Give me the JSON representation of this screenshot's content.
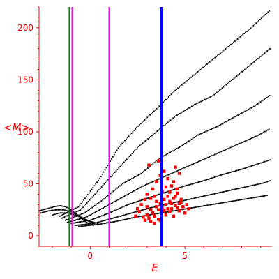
{
  "chart_data": {
    "type": "scatter",
    "title": "",
    "xlabel": "E",
    "ylabel": "<M>",
    "xlim": [
      -2.7,
      9.6
    ],
    "ylim": [
      -10,
      220
    ],
    "xticks": [
      0,
      5
    ],
    "yticks": [
      0,
      50,
      100,
      150,
      200
    ],
    "grid": false,
    "axis_color": "#ff0000",
    "vertical_lines": [
      {
        "x": -1.1,
        "color": "#008000"
      },
      {
        "x": -0.95,
        "color": "#ff00ff"
      },
      {
        "x": 1.0,
        "color": "#ff00ff"
      },
      {
        "x": 3.75,
        "color": "#0000ff"
      }
    ],
    "series": [
      {
        "color": "#000000",
        "marker": "dot",
        "bands": [
          {
            "x": [
              -1.6,
              -0.6,
              0.5,
              1.5,
              2.5,
              3.5,
              4.5,
              5.5,
              6.5,
              7.5,
              8.5,
              9.5
            ],
            "y": [
              19,
              28,
              55,
              85,
              105,
              122,
              140,
              155,
              170,
              185,
              200,
              217
            ]
          },
          {
            "x": [
              -1.5,
              -0.5,
              0.5,
              1.5,
              2.5,
              3.5,
              4.5,
              5.5,
              6.5,
              7.5,
              8.5,
              9.5
            ],
            "y": [
              17,
              25,
              45,
              65,
              85,
              100,
              115,
              126,
              135,
              150,
              165,
              180
            ]
          },
          {
            "x": [
              -1.3,
              -0.3,
              0.7,
              1.7,
              2.7,
              3.7,
              4.7,
              5.7,
              6.7,
              7.7,
              8.7,
              9.5
            ],
            "y": [
              15,
              22,
              35,
              50,
              60,
              75,
              85,
              97,
              105,
              115,
              125,
              135
            ]
          },
          {
            "x": [
              -1.2,
              -0.2,
              0.8,
              1.8,
              2.8,
              3.8,
              4.8,
              5.8,
              6.8,
              7.8,
              8.8,
              9.5
            ],
            "y": [
              13,
              18,
              28,
              38,
              48,
              56,
              64,
              72,
              80,
              88,
              96,
              103
            ]
          },
          {
            "x": [
              -1.0,
              0.0,
              1.0,
              2.0,
              3.0,
              4.0,
              5.0,
              6.0,
              7.0,
              8.0,
              9.0,
              9.5
            ],
            "y": [
              12,
              15,
              22,
              30,
              36,
              42,
              48,
              53,
              59,
              64,
              70,
              73
            ]
          },
          {
            "x": [
              -0.8,
              0.2,
              1.2,
              2.2,
              3.2,
              4.2,
              5.2,
              6.2,
              7.2,
              8.2,
              9.2,
              9.5
            ],
            "y": [
              10,
              12,
              17,
              22,
              27,
              31,
              35,
              39,
              43,
              47,
              51,
              53
            ]
          },
          {
            "x": [
              -0.6,
              0.4,
              1.4,
              2.4,
              3.4,
              4.4,
              5.4,
              6.4,
              7.4,
              8.4,
              9.4
            ],
            "y": [
              9,
              11,
              14,
              18,
              21,
              24,
              27,
              30,
              33,
              36,
              39
            ]
          },
          {
            "x": [
              -2.7,
              -2.3,
              -1.9,
              -1.6,
              -1.3,
              -1.0,
              -0.6,
              -0.2,
              0.2
            ],
            "y": [
              24,
              26,
              28,
              29,
              28,
              25,
              19,
              13,
              10
            ]
          },
          {
            "x": [
              -2.6,
              -2.2,
              -1.8,
              -1.4,
              -1.0,
              -0.6,
              -0.2,
              0.2
            ],
            "y": [
              22,
              24,
              25,
              25,
              23,
              19,
              15,
              12
            ]
          },
          {
            "x": [
              -2.0,
              -1.6,
              -1.2,
              -0.8,
              -0.4,
              0.0,
              0.4
            ],
            "y": [
              20,
              22,
              22,
              20,
              17,
              14,
              12
            ]
          }
        ]
      },
      {
        "color": "#ff0000",
        "marker": "square",
        "points": [
          [
            2.6,
            23
          ],
          [
            2.8,
            18
          ],
          [
            2.9,
            15
          ],
          [
            3.0,
            20
          ],
          [
            3.1,
            17
          ],
          [
            3.2,
            14
          ],
          [
            3.3,
            22
          ],
          [
            3.4,
            19
          ],
          [
            3.5,
            28
          ],
          [
            3.6,
            25
          ],
          [
            3.7,
            31
          ],
          [
            3.8,
            27
          ],
          [
            3.9,
            35
          ],
          [
            4.0,
            30
          ],
          [
            4.1,
            38
          ],
          [
            4.2,
            33
          ],
          [
            4.3,
            26
          ],
          [
            4.4,
            36
          ],
          [
            4.5,
            29
          ],
          [
            4.6,
            41
          ],
          [
            4.7,
            24
          ],
          [
            4.8,
            32
          ],
          [
            4.9,
            28
          ],
          [
            5.0,
            22
          ],
          [
            3.3,
            45
          ],
          [
            3.5,
            52
          ],
          [
            3.7,
            58
          ],
          [
            3.9,
            62
          ],
          [
            4.1,
            55
          ],
          [
            4.3,
            48
          ],
          [
            4.5,
            66
          ],
          [
            4.7,
            60
          ],
          [
            3.1,
            68
          ],
          [
            3.6,
            72
          ],
          [
            3.0,
            40
          ],
          [
            2.7,
            30
          ],
          [
            3.2,
            36
          ],
          [
            3.4,
            12
          ],
          [
            3.6,
            16
          ],
          [
            4.0,
            20
          ],
          [
            4.2,
            23
          ],
          [
            4.4,
            19
          ],
          [
            4.6,
            27
          ],
          [
            4.8,
            35
          ],
          [
            5.1,
            30
          ],
          [
            5.2,
            26
          ],
          [
            3.8,
            43
          ],
          [
            4.0,
            47
          ],
          [
            4.2,
            42
          ],
          [
            3.0,
            28
          ],
          [
            2.5,
            26
          ],
          [
            2.4,
            19
          ],
          [
            4.5,
            38
          ],
          [
            4.3,
            31
          ],
          [
            3.9,
            24
          ],
          [
            3.5,
            33
          ],
          [
            3.2,
            25
          ],
          [
            3.4,
            38
          ],
          [
            4.6,
            45
          ],
          [
            4.4,
            52
          ],
          [
            2.9,
            35
          ],
          [
            3.7,
            15
          ],
          [
            4.1,
            26
          ],
          [
            4.7,
            31
          ]
        ]
      }
    ]
  }
}
